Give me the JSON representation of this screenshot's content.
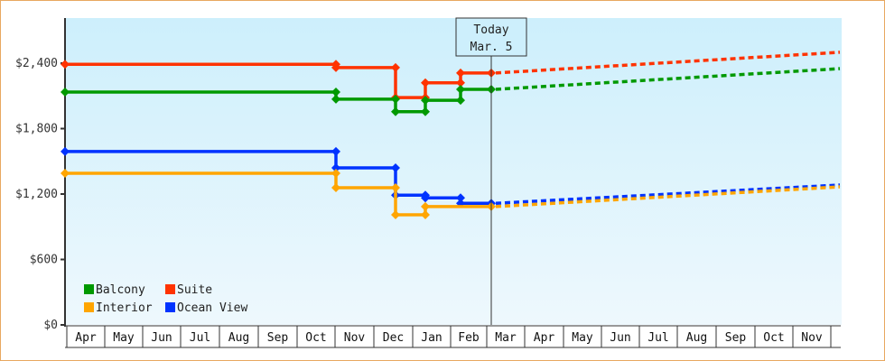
{
  "chart_data": {
    "type": "line",
    "title": "",
    "xlabel": "",
    "ylabel": "",
    "ylim": [
      0,
      2800
    ],
    "yticks": [
      "$0",
      "$600",
      "$1,200",
      "$1,800",
      "$2,400"
    ],
    "ytick_values": [
      0,
      600,
      1200,
      1800,
      2400
    ],
    "x_categories": [
      "Apr",
      "May",
      "Jun",
      "Jul",
      "Aug",
      "Sep",
      "Oct",
      "Nov",
      "Dec",
      "Jan",
      "Feb",
      "Mar",
      "Apr",
      "May",
      "Jun",
      "Jul",
      "Aug",
      "Sep",
      "Oct",
      "Nov"
    ],
    "annotation": {
      "line1": "Today",
      "line2": "Mar. 5"
    },
    "legend": [
      {
        "name": "Balcony",
        "color": "#009900"
      },
      {
        "name": "Suite",
        "color": "#ff3300"
      },
      {
        "name": "Interior",
        "color": "#ffa500"
      },
      {
        "name": "Ocean View",
        "color": "#0033ff"
      }
    ],
    "legend_position": "bottom-left",
    "step_style": "historical step line with markers, dashed forecast after today",
    "series": [
      {
        "name": "Suite",
        "color": "#ff3300",
        "history": [
          {
            "date": "Apr",
            "value": 2390
          },
          {
            "date": "Oct end",
            "value": 2390
          },
          {
            "date": "Nov",
            "value": 2360
          },
          {
            "date": "Dec mid",
            "value": 2360
          },
          {
            "date": "Dec mid",
            "value": 2085
          },
          {
            "date": "Jan mid",
            "value": 2085
          },
          {
            "date": "Jan mid",
            "value": 2220
          },
          {
            "date": "Feb",
            "value": 2220
          },
          {
            "date": "Feb",
            "value": 2310
          },
          {
            "date": "Mar 5",
            "value": 2310
          }
        ],
        "forecast_end": {
          "date": "Nov end",
          "value": 2500
        }
      },
      {
        "name": "Balcony",
        "color": "#009900",
        "history": [
          {
            "date": "Apr",
            "value": 2135
          },
          {
            "date": "Oct end",
            "value": 2135
          },
          {
            "date": "Nov",
            "value": 2070
          },
          {
            "date": "Dec mid",
            "value": 2070
          },
          {
            "date": "Dec mid",
            "value": 1955
          },
          {
            "date": "Jan mid",
            "value": 1955
          },
          {
            "date": "Jan mid",
            "value": 2060
          },
          {
            "date": "Feb",
            "value": 2060
          },
          {
            "date": "Feb",
            "value": 2160
          },
          {
            "date": "Mar 5",
            "value": 2160
          }
        ],
        "forecast_end": {
          "date": "Nov end",
          "value": 2350
        }
      },
      {
        "name": "Ocean View",
        "color": "#0033ff",
        "history": [
          {
            "date": "Apr",
            "value": 1590
          },
          {
            "date": "Oct end",
            "value": 1590
          },
          {
            "date": "Nov",
            "value": 1440
          },
          {
            "date": "Dec mid",
            "value": 1440
          },
          {
            "date": "Dec mid",
            "value": 1190
          },
          {
            "date": "Jan mid",
            "value": 1190
          },
          {
            "date": "Jan mid",
            "value": 1165
          },
          {
            "date": "Feb",
            "value": 1165
          },
          {
            "date": "Feb",
            "value": 1115
          },
          {
            "date": "Mar 5",
            "value": 1115
          }
        ],
        "forecast_end": {
          "date": "Nov end",
          "value": 1283
        }
      },
      {
        "name": "Interior",
        "color": "#ffa500",
        "history": [
          {
            "date": "Apr",
            "value": 1390
          },
          {
            "date": "Oct end",
            "value": 1390
          },
          {
            "date": "Nov",
            "value": 1258
          },
          {
            "date": "Dec mid",
            "value": 1258
          },
          {
            "date": "Dec mid",
            "value": 1010
          },
          {
            "date": "Jan mid",
            "value": 1010
          },
          {
            "date": "Jan mid",
            "value": 1085
          },
          {
            "date": "Mar 5",
            "value": 1085
          }
        ],
        "forecast_end": {
          "date": "Nov end",
          "value": 1266
        }
      }
    ]
  },
  "colors": {
    "frame_border": "#e8a860",
    "plot_top": "#cdeffc",
    "plot_bottom": "#eef8fd",
    "axis": "#333333"
  }
}
